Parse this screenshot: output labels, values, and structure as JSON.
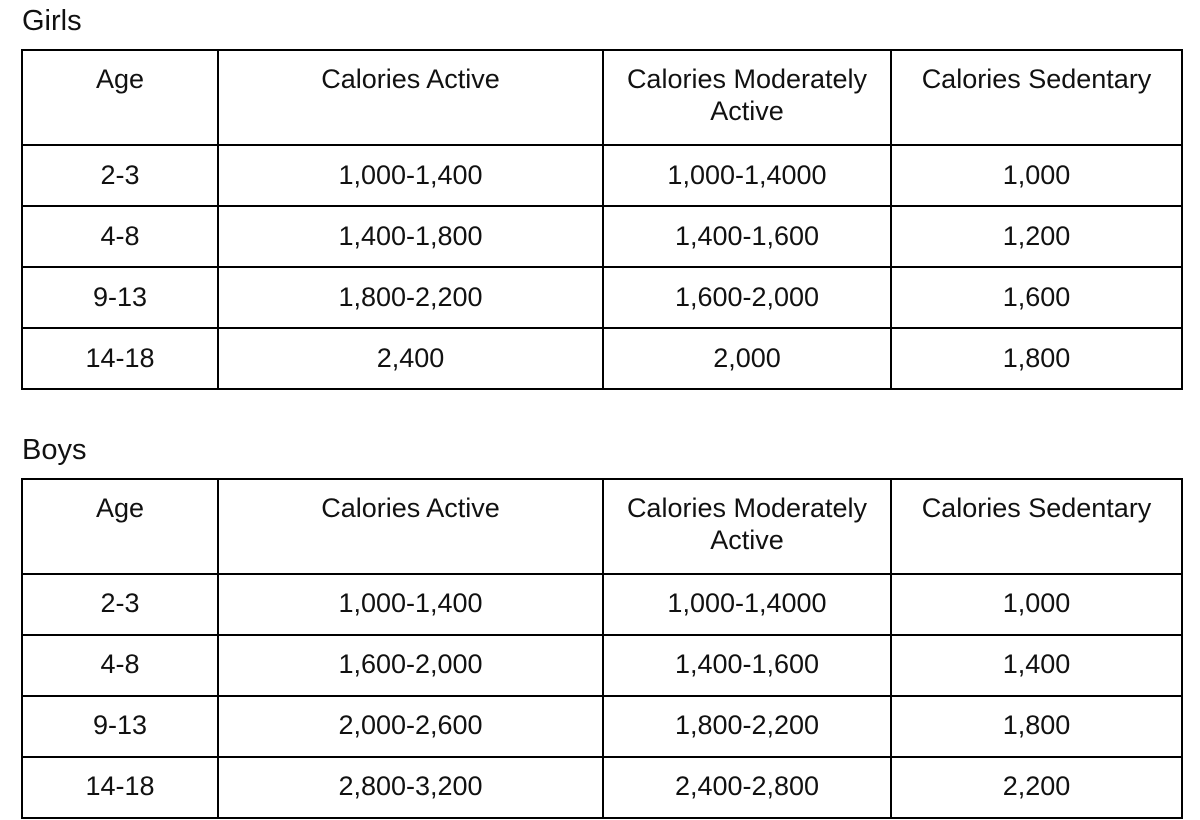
{
  "page": {
    "background_color": "#ffffff",
    "border_color": "#000000",
    "text_color": "#111111"
  },
  "tables": [
    {
      "label": "Girls",
      "headers": [
        "Age",
        "Calories Active",
        "Calories Moderately Active",
        "Calories Sedentary"
      ],
      "rows": [
        [
          "2-3",
          "1,000-1,400",
          "1,000-1,4000",
          "1,000"
        ],
        [
          "4-8",
          "1,400-1,800",
          "1,400-1,600",
          "1,200"
        ],
        [
          "9-13",
          "1,800-2,200",
          "1,600-2,000",
          "1,600"
        ],
        [
          "14-18",
          "2,400",
          "2,000",
          "1,800"
        ]
      ]
    },
    {
      "label": "Boys",
      "headers": [
        "Age",
        "Calories Active",
        "Calories Moderately Active",
        "Calories Sedentary"
      ],
      "rows": [
        [
          "2-3",
          "1,000-1,400",
          "1,000-1,4000",
          "1,000"
        ],
        [
          "4-8",
          "1,600-2,000",
          "1,400-1,600",
          "1,400"
        ],
        [
          "9-13",
          "2,000-2,600",
          "1,800-2,200",
          "1,800"
        ],
        [
          "14-18",
          "2,800-3,200",
          "2,400-2,800",
          "2,200"
        ]
      ]
    }
  ]
}
